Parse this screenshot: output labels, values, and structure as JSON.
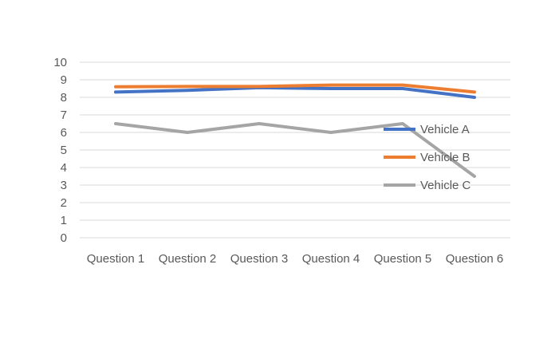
{
  "chart_data": {
    "type": "line",
    "title": "",
    "xlabel": "",
    "ylabel": "",
    "categories": [
      "Question 1",
      "Question 2",
      "Question 3",
      "Question 4",
      "Question 5",
      "Question 6"
    ],
    "ylim": [
      0,
      10
    ],
    "yticks": [
      "0",
      "1",
      "2",
      "3",
      "4",
      "5",
      "6",
      "7",
      "8",
      "9",
      "10"
    ],
    "grid": true,
    "legend_placement": "right",
    "series": [
      {
        "name": "Vehicle A",
        "color": "#4472C4",
        "values": [
          8.3,
          8.4,
          8.55,
          8.5,
          8.5,
          8.0
        ]
      },
      {
        "name": "Vehicle B",
        "color": "#ED7D31",
        "values": [
          8.6,
          8.62,
          8.62,
          8.7,
          8.7,
          8.3
        ]
      },
      {
        "name": "Vehicle C",
        "color": "#A5A5A5",
        "values": [
          6.5,
          6.0,
          6.5,
          6.0,
          6.5,
          3.5
        ]
      }
    ]
  }
}
